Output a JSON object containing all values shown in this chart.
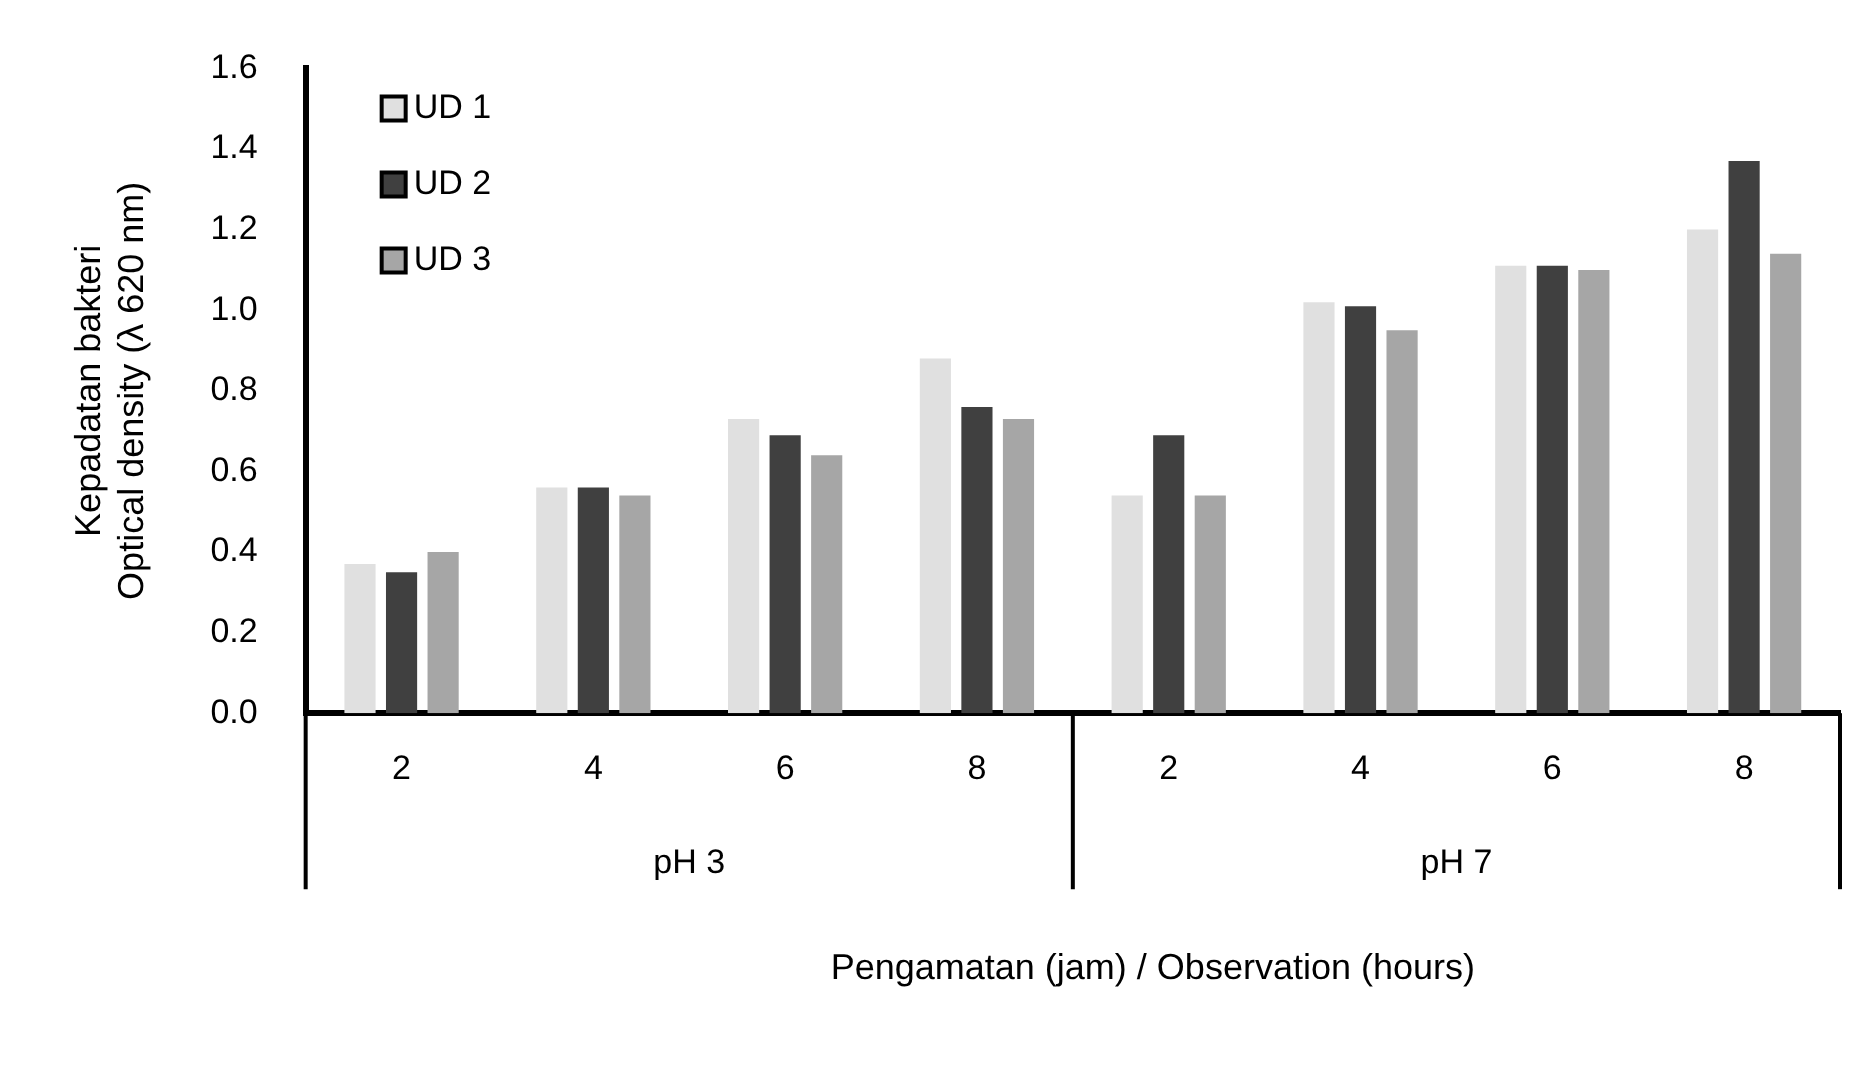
{
  "chart_data": {
    "type": "bar",
    "xlabel": "Pengamatan (jam) / Observation (hours)",
    "ylabel": "Kepadatan bakteri\nOptical density (λ 620 nm)",
    "categories": [
      "2",
      "4",
      "6",
      "8",
      "2",
      "4",
      "6",
      "8"
    ],
    "annotations": [
      "pH 3",
      "pH 7"
    ],
    "series": [
      {
        "name": "UD 1",
        "color": "#e0e0e0",
        "values": [
          0.37,
          0.56,
          0.73,
          0.88,
          0.54,
          1.02,
          1.11,
          1.2
        ]
      },
      {
        "name": "UD 2",
        "color": "#404040",
        "values": [
          0.35,
          0.56,
          0.69,
          0.76,
          0.69,
          1.01,
          1.11,
          1.37
        ]
      },
      {
        "name": "UD 3",
        "color": "#a6a6a6",
        "values": [
          0.4,
          0.54,
          0.64,
          0.73,
          0.54,
          0.95,
          1.1,
          1.14
        ]
      }
    ],
    "ylim": [
      0,
      1.6
    ],
    "yticks": [
      {
        "value": 0,
        "label": "0.0"
      },
      0.2,
      0.4,
      0.6,
      0.8,
      {
        "value": 1,
        "label": "1.0"
      },
      1.2,
      1.4,
      1.6
    ],
    "grid": false,
    "legend": "top left"
  }
}
